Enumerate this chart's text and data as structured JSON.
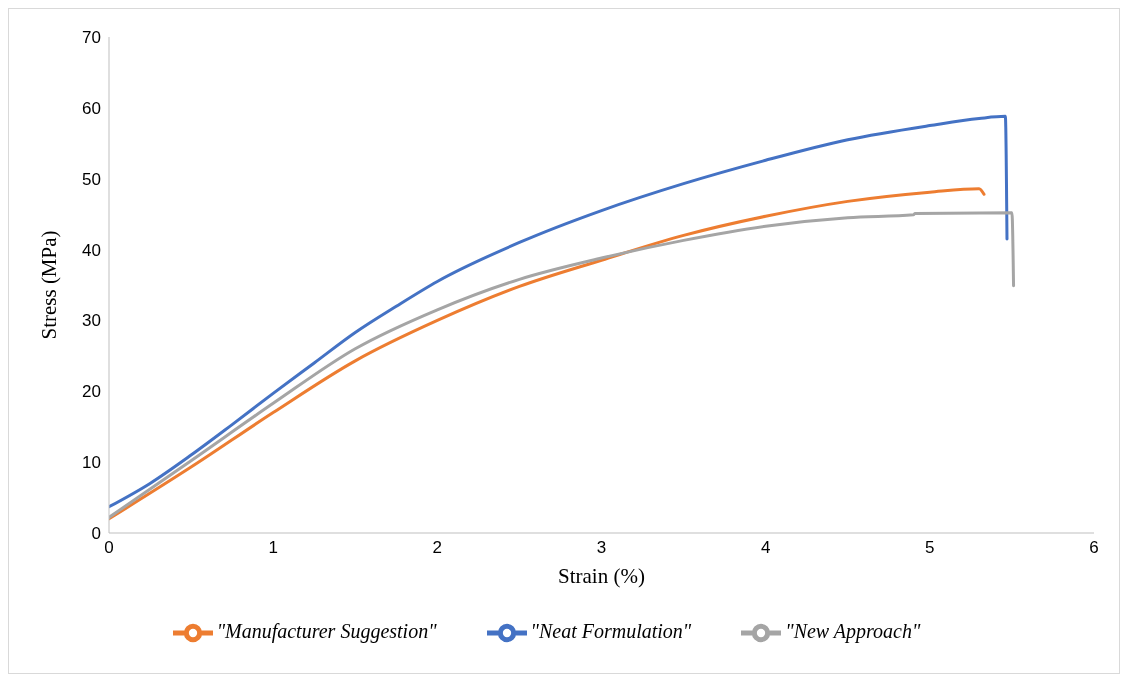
{
  "chart_data": {
    "type": "line",
    "xlabel": "Strain (%)",
    "ylabel": "Stress (MPa)",
    "xlim": [
      0,
      6
    ],
    "xticks": [
      0,
      1,
      2,
      3,
      4,
      5,
      6
    ],
    "ylim": [
      0,
      70
    ],
    "yticks": [
      0,
      10,
      20,
      30,
      40,
      50,
      60,
      70
    ],
    "grid": false,
    "legend": "bottom",
    "marker": "none",
    "line_style": "solid",
    "series": [
      {
        "name": "\"Neat Formulation\"",
        "color": "#4472c4",
        "x": [
          0,
          0.25,
          0.5,
          0.75,
          1,
          1.25,
          1.5,
          1.75,
          2,
          2.5,
          3,
          3.5,
          4,
          4.5,
          5,
          5.3,
          5.46,
          5.47
        ],
        "values": [
          3.7,
          7,
          11,
          15.3,
          19.7,
          24,
          28.3,
          32,
          35.5,
          41,
          45.5,
          49.3,
          52.6,
          55.5,
          57.5,
          58.5,
          58.8,
          41.5
        ]
      },
      {
        "name": "\"Manufacturer Suggestion\"",
        "color": "#ed7d31",
        "x": [
          0,
          0.5,
          1,
          1.5,
          2,
          2.5,
          3,
          3.5,
          4,
          4.5,
          5,
          5.3,
          5.33
        ],
        "values": [
          2,
          9.3,
          17,
          24.3,
          30,
          34.8,
          38.5,
          42,
          44.7,
          46.8,
          48.1,
          48.6,
          47.8
        ]
      },
      {
        "name": "\"New Approach\"",
        "color": "#a5a5a5",
        "x": [
          0,
          0.5,
          1,
          1.5,
          2,
          2.5,
          3,
          3.5,
          4,
          4.5,
          4.9,
          4.91,
          5.5,
          5.51
        ],
        "values": [
          2.2,
          10.2,
          18.3,
          26,
          31.5,
          35.8,
          38.8,
          41.3,
          43.3,
          44.5,
          44.9,
          45.1,
          45.2,
          34.9
        ]
      }
    ]
  }
}
